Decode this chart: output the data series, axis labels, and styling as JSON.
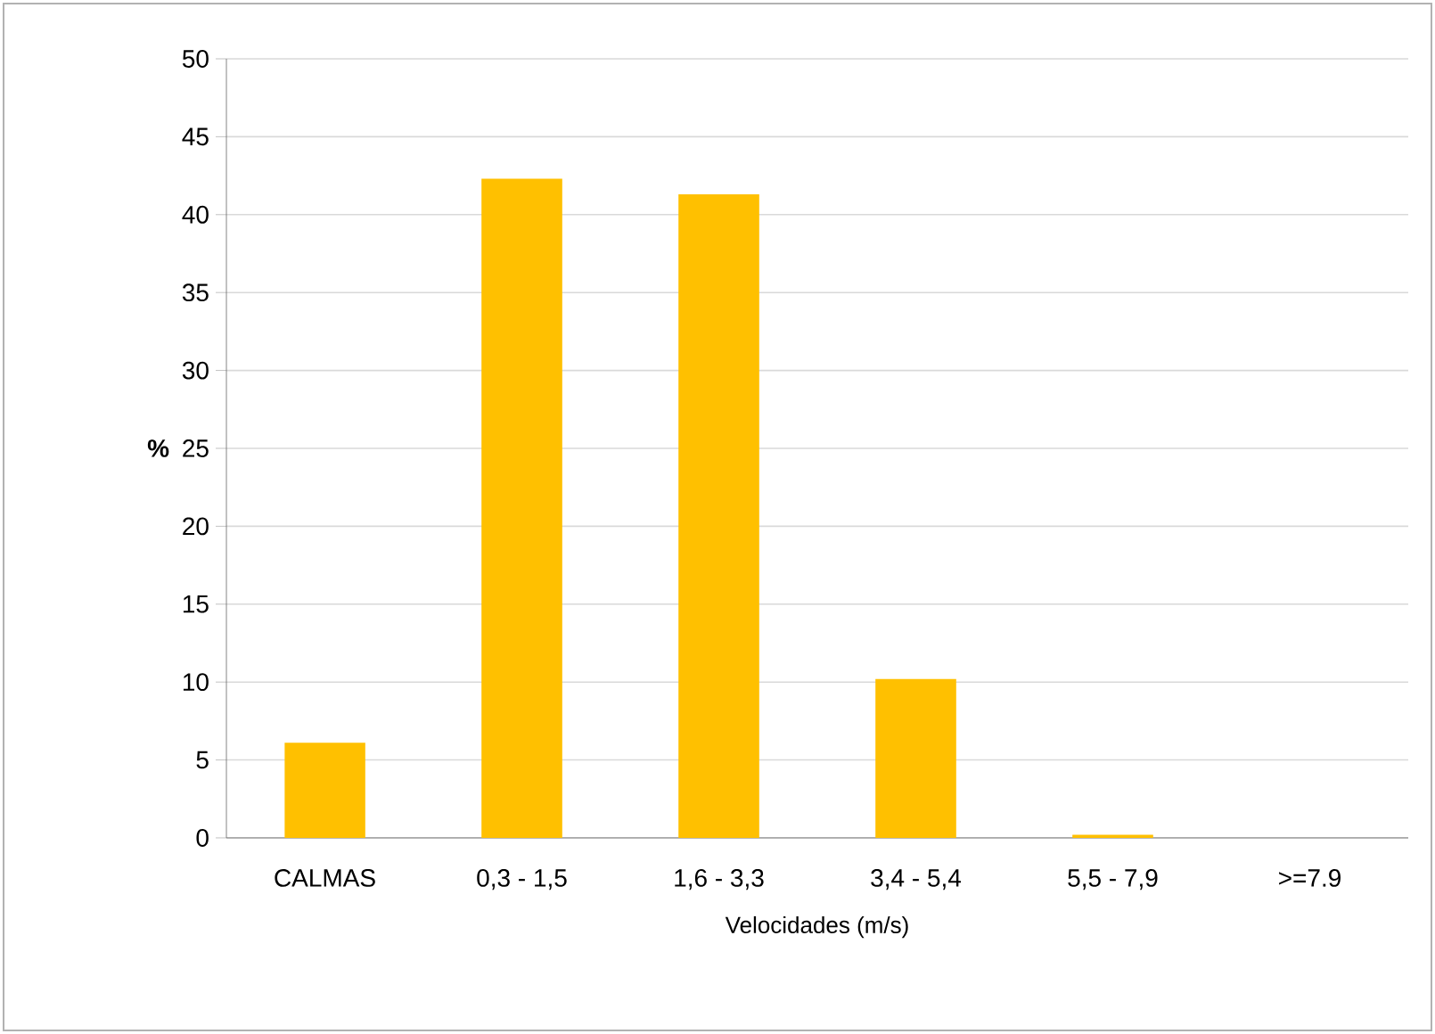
{
  "chart_data": {
    "type": "bar",
    "xlabel": "Velocidades (m/s)",
    "ylabel": "%",
    "categories": [
      "CALMAS",
      "0,3 - 1,5",
      "1,6 - 3,3",
      "3,4 - 5,4",
      "5,5 - 7,9",
      ">=7.9"
    ],
    "values": [
      6.1,
      42.3,
      41.3,
      10.2,
      0.2,
      0
    ],
    "color": "#ffc000",
    "ylim": [
      0,
      50
    ],
    "yticks": [
      0,
      5,
      10,
      15,
      20,
      25,
      30,
      35,
      40,
      45,
      50
    ],
    "grid": "y"
  }
}
